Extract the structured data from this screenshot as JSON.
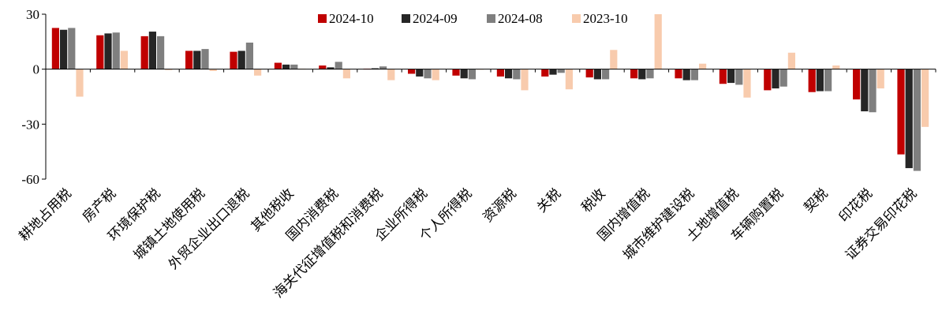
{
  "chart_data": {
    "type": "bar",
    "title": "",
    "xlabel": "",
    "ylabel": "",
    "ylim": [
      -60,
      30
    ],
    "yticks": [
      30,
      0,
      -30,
      -60
    ],
    "grid": false,
    "legend_position": "top-center",
    "categories": [
      "耕地占用税",
      "房产税",
      "环境保护税",
      "城镇土地使用税",
      "外贸企业出口退税",
      "其他税收",
      "国内消费税",
      "海关代征增值税和消费税",
      "企业所得税",
      "个人所得税",
      "资源税",
      "关税",
      "税收",
      "国内增值税",
      "城市维护建设税",
      "土地增值税",
      "车辆购置税",
      "契税",
      "印花税",
      "证券交易印花税"
    ],
    "series": [
      {
        "name": "2024-10",
        "color": "#C00000",
        "values": [
          22.5,
          18.5,
          18.0,
          10.0,
          9.5,
          3.5,
          2.0,
          0.3,
          -2.5,
          -3.5,
          -4.0,
          -4.0,
          -4.5,
          -5.0,
          -5.0,
          -8.0,
          -11.5,
          -12.5,
          -16.5,
          -46.5
        ]
      },
      {
        "name": "2024-09",
        "color": "#262626",
        "values": [
          21.5,
          19.5,
          20.5,
          10.0,
          10.0,
          2.5,
          1.0,
          0.5,
          -4.0,
          -5.0,
          -5.0,
          -3.0,
          -5.5,
          -5.5,
          -6.0,
          -7.5,
          -10.5,
          -12.0,
          -23.0,
          -54.0
        ]
      },
      {
        "name": "2024-08",
        "color": "#7F7F7F",
        "values": [
          22.5,
          20.0,
          18.0,
          11.0,
          14.5,
          2.5,
          4.0,
          1.5,
          -5.0,
          -5.5,
          -5.5,
          -2.0,
          -5.5,
          -5.0,
          -6.0,
          -8.5,
          -9.5,
          -12.0,
          -23.5,
          -55.5
        ]
      },
      {
        "name": "2023-10",
        "color": "#F8CBAD",
        "values": [
          -15.0,
          10.0,
          -0.5,
          -1.0,
          -3.5,
          0.3,
          -5.0,
          -6.0,
          -6.0,
          -0.3,
          -11.5,
          -11.0,
          10.5,
          30.0,
          3.0,
          -15.5,
          9.0,
          2.0,
          -10.5,
          -31.5
        ]
      }
    ]
  }
}
